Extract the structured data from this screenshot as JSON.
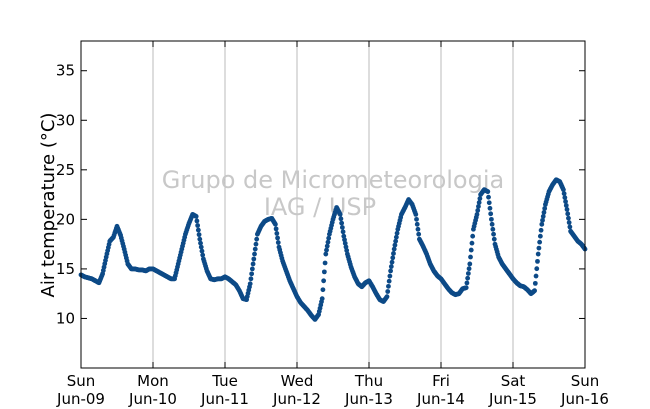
{
  "chart_data": {
    "type": "scatter",
    "title": "",
    "xlabel": "",
    "ylabel": "Air temperature (°C)",
    "xlim": [
      0,
      7
    ],
    "ylim": [
      5,
      38
    ],
    "grid": "vertical lines at day boundaries",
    "x_unit": "days from Sun Jun-09 00:00",
    "x_ticks": [
      {
        "x": 0,
        "day": "Sun",
        "date": "Jun-09"
      },
      {
        "x": 1,
        "day": "Mon",
        "date": "Jun-10"
      },
      {
        "x": 2,
        "day": "Tue",
        "date": "Jun-11"
      },
      {
        "x": 3,
        "day": "Wed",
        "date": "Jun-12"
      },
      {
        "x": 4,
        "day": "Thu",
        "date": "Jun-13"
      },
      {
        "x": 5,
        "day": "Fri",
        "date": "Jun-14"
      },
      {
        "x": 6,
        "day": "Sat",
        "date": "Jun-15"
      },
      {
        "x": 7,
        "day": "Sun",
        "date": "Jun-16"
      }
    ],
    "y_ticks": [
      10,
      15,
      20,
      25,
      30,
      35
    ],
    "watermark": [
      "Grupo de Micrometeorologia",
      "IAG / USP"
    ],
    "colors": {
      "series": "#0d4a87",
      "grid": "#bbbbbb"
    },
    "series": [
      {
        "points": [
          [
            0.0,
            14.4
          ],
          [
            0.05,
            14.2
          ],
          [
            0.1,
            14.1
          ],
          [
            0.15,
            14.0
          ],
          [
            0.2,
            13.8
          ],
          [
            0.25,
            13.6
          ],
          [
            0.3,
            14.5
          ],
          [
            0.35,
            16.2
          ],
          [
            0.4,
            17.8
          ],
          [
            0.45,
            18.2
          ],
          [
            0.5,
            19.3
          ],
          [
            0.55,
            18.4
          ],
          [
            0.6,
            17.0
          ],
          [
            0.65,
            15.5
          ],
          [
            0.7,
            15.0
          ],
          [
            0.75,
            15.0
          ],
          [
            0.8,
            14.9
          ],
          [
            0.85,
            14.9
          ],
          [
            0.9,
            14.8
          ],
          [
            0.95,
            15.0
          ],
          [
            1.0,
            15.0
          ],
          [
            1.05,
            14.8
          ],
          [
            1.1,
            14.6
          ],
          [
            1.15,
            14.4
          ],
          [
            1.2,
            14.2
          ],
          [
            1.25,
            14.0
          ],
          [
            1.3,
            14.0
          ],
          [
            1.35,
            15.5
          ],
          [
            1.4,
            17.0
          ],
          [
            1.45,
            18.5
          ],
          [
            1.5,
            19.6
          ],
          [
            1.55,
            20.5
          ],
          [
            1.6,
            20.3
          ],
          [
            1.65,
            18.0
          ],
          [
            1.7,
            16.0
          ],
          [
            1.75,
            14.8
          ],
          [
            1.8,
            14.0
          ],
          [
            1.85,
            13.9
          ],
          [
            1.9,
            14.0
          ],
          [
            1.95,
            14.0
          ],
          [
            2.0,
            14.2
          ],
          [
            2.05,
            14.0
          ],
          [
            2.1,
            13.7
          ],
          [
            2.15,
            13.4
          ],
          [
            2.2,
            12.8
          ],
          [
            2.25,
            12.0
          ],
          [
            2.3,
            11.9
          ],
          [
            2.35,
            13.5
          ],
          [
            2.4,
            16.0
          ],
          [
            2.45,
            18.5
          ],
          [
            2.5,
            19.3
          ],
          [
            2.55,
            19.8
          ],
          [
            2.6,
            20.0
          ],
          [
            2.65,
            20.1
          ],
          [
            2.7,
            19.5
          ],
          [
            2.75,
            17.2
          ],
          [
            2.8,
            15.8
          ],
          [
            2.85,
            14.8
          ],
          [
            2.9,
            13.8
          ],
          [
            2.95,
            13.0
          ],
          [
            3.0,
            12.2
          ],
          [
            3.05,
            11.6
          ],
          [
            3.1,
            11.2
          ],
          [
            3.15,
            10.8
          ],
          [
            3.2,
            10.3
          ],
          [
            3.25,
            9.9
          ],
          [
            3.3,
            10.4
          ],
          [
            3.35,
            12.0
          ],
          [
            3.4,
            16.5
          ],
          [
            3.45,
            18.5
          ],
          [
            3.5,
            20.0
          ],
          [
            3.55,
            21.2
          ],
          [
            3.6,
            20.5
          ],
          [
            3.65,
            18.3
          ],
          [
            3.7,
            16.5
          ],
          [
            3.75,
            15.2
          ],
          [
            3.8,
            14.2
          ],
          [
            3.85,
            13.5
          ],
          [
            3.9,
            13.2
          ],
          [
            3.95,
            13.6
          ],
          [
            4.0,
            13.8
          ],
          [
            4.05,
            13.2
          ],
          [
            4.1,
            12.5
          ],
          [
            4.15,
            11.9
          ],
          [
            4.2,
            11.7
          ],
          [
            4.25,
            12.2
          ],
          [
            4.3,
            14.8
          ],
          [
            4.35,
            17.0
          ],
          [
            4.4,
            19.0
          ],
          [
            4.45,
            20.5
          ],
          [
            4.5,
            21.2
          ],
          [
            4.55,
            22.0
          ],
          [
            4.6,
            21.5
          ],
          [
            4.65,
            20.5
          ],
          [
            4.7,
            18.0
          ],
          [
            4.75,
            17.3
          ],
          [
            4.8,
            16.5
          ],
          [
            4.85,
            15.5
          ],
          [
            4.9,
            14.8
          ],
          [
            4.95,
            14.3
          ],
          [
            5.0,
            14.0
          ],
          [
            5.05,
            13.5
          ],
          [
            5.1,
            13.0
          ],
          [
            5.15,
            12.6
          ],
          [
            5.2,
            12.4
          ],
          [
            5.25,
            12.5
          ],
          [
            5.3,
            13.0
          ],
          [
            5.35,
            13.1
          ],
          [
            5.4,
            15.5
          ],
          [
            5.45,
            19.0
          ],
          [
            5.5,
            20.5
          ],
          [
            5.55,
            22.5
          ],
          [
            5.6,
            23.0
          ],
          [
            5.65,
            22.8
          ],
          [
            5.7,
            20.0
          ],
          [
            5.75,
            17.5
          ],
          [
            5.8,
            16.2
          ],
          [
            5.85,
            15.5
          ],
          [
            5.9,
            15.0
          ],
          [
            5.95,
            14.5
          ],
          [
            6.0,
            14.0
          ],
          [
            6.05,
            13.6
          ],
          [
            6.1,
            13.3
          ],
          [
            6.15,
            13.2
          ],
          [
            6.2,
            12.9
          ],
          [
            6.25,
            12.5
          ],
          [
            6.3,
            12.8
          ],
          [
            6.35,
            16.5
          ],
          [
            6.4,
            19.5
          ],
          [
            6.45,
            21.5
          ],
          [
            6.5,
            22.8
          ],
          [
            6.55,
            23.5
          ],
          [
            6.6,
            24.0
          ],
          [
            6.65,
            23.8
          ],
          [
            6.7,
            23.0
          ],
          [
            6.75,
            21.0
          ],
          [
            6.8,
            18.8
          ],
          [
            6.85,
            18.3
          ],
          [
            6.9,
            17.8
          ],
          [
            6.95,
            17.5
          ],
          [
            7.0,
            17.0
          ]
        ]
      }
    ]
  }
}
